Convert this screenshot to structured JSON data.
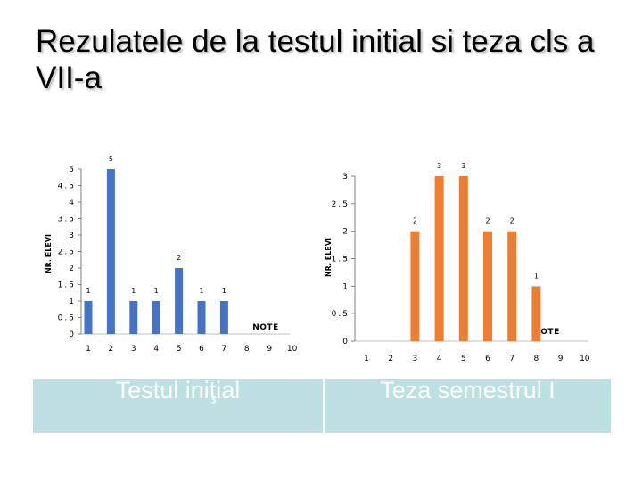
{
  "slide": {
    "title": "Rezulatele de la testul initial si teza cls a VII-a"
  },
  "chart_data": [
    {
      "type": "bar",
      "title": "",
      "xlabel": "NOTE",
      "ylabel": "NR. ELEVI",
      "caption": "Testul iniţial",
      "categories": [
        "1",
        "2",
        "3",
        "4",
        "5",
        "6",
        "7",
        "8",
        "9",
        "10"
      ],
      "values": [
        1,
        5,
        1,
        1,
        2,
        1,
        1,
        0,
        0,
        0
      ],
      "data_labels": [
        "1",
        "5",
        "1",
        "1",
        "2",
        "1",
        "1",
        "",
        "",
        ""
      ],
      "y_ticks": [
        "0",
        "0.5",
        "1",
        "1.5",
        "2",
        "2.5",
        "3",
        "3.5",
        "4",
        "4.5",
        "5"
      ],
      "ylim": [
        0,
        5
      ],
      "bar_color": "#4472c4",
      "grid": false,
      "legend": "none"
    },
    {
      "type": "bar",
      "title": "",
      "xlabel": "NOTE",
      "ylabel": "NR. ELEVI",
      "caption": "Teza semestrul I",
      "categories": [
        "1",
        "2",
        "3",
        "4",
        "5",
        "6",
        "7",
        "8",
        "9",
        "10"
      ],
      "values": [
        0,
        0,
        2,
        3,
        3,
        2,
        2,
        1,
        0,
        0
      ],
      "data_labels": [
        "",
        "",
        "2",
        "3",
        "3",
        "2",
        "2",
        "1",
        "",
        ""
      ],
      "y_ticks": [
        "0",
        "0.5",
        "1",
        "1.5",
        "2",
        "2.5",
        "3"
      ],
      "ylim": [
        0,
        3
      ],
      "bar_color": "#ed7d31",
      "grid": false,
      "legend": "none"
    }
  ]
}
